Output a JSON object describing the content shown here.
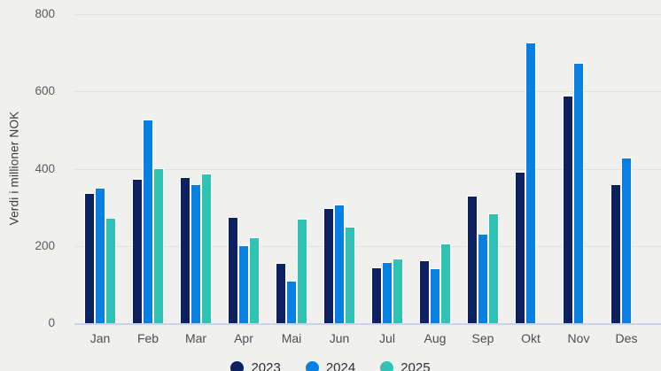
{
  "chart_data": {
    "type": "bar",
    "title": "",
    "xlabel": "",
    "ylabel": "Verdi i millioner NOK",
    "ylim": [
      0,
      800
    ],
    "yticks": [
      0,
      200,
      400,
      600,
      800
    ],
    "grid": true,
    "legend_position": "bottom",
    "categories": [
      "Jan",
      "Feb",
      "Mar",
      "Apr",
      "Mai",
      "Jun",
      "Jul",
      "Aug",
      "Sep",
      "Okt",
      "Nov",
      "Des"
    ],
    "series": [
      {
        "name": "2023",
        "color": "#0d205f",
        "values": [
          337,
          373,
          378,
          274,
          156,
          297,
          144,
          163,
          329,
          391,
          589,
          359
        ]
      },
      {
        "name": "2024",
        "color": "#0880e1",
        "values": [
          350,
          527,
          360,
          202,
          110,
          308,
          159,
          142,
          232,
          726,
          673,
          428
        ]
      },
      {
        "name": "2025",
        "color": "#30c3b3",
        "values": [
          272,
          402,
          387,
          222,
          271,
          251,
          167,
          207,
          285,
          null,
          null,
          null
        ]
      }
    ]
  },
  "style": {
    "background": "#f0f1ee",
    "gridline_color": "#e2e4e0",
    "baseline_color": "#c9d3ee",
    "bar_outline": "#ffffff",
    "tick_label_color": "#5a5a5a",
    "month_label_color": "#4e4e4e"
  }
}
